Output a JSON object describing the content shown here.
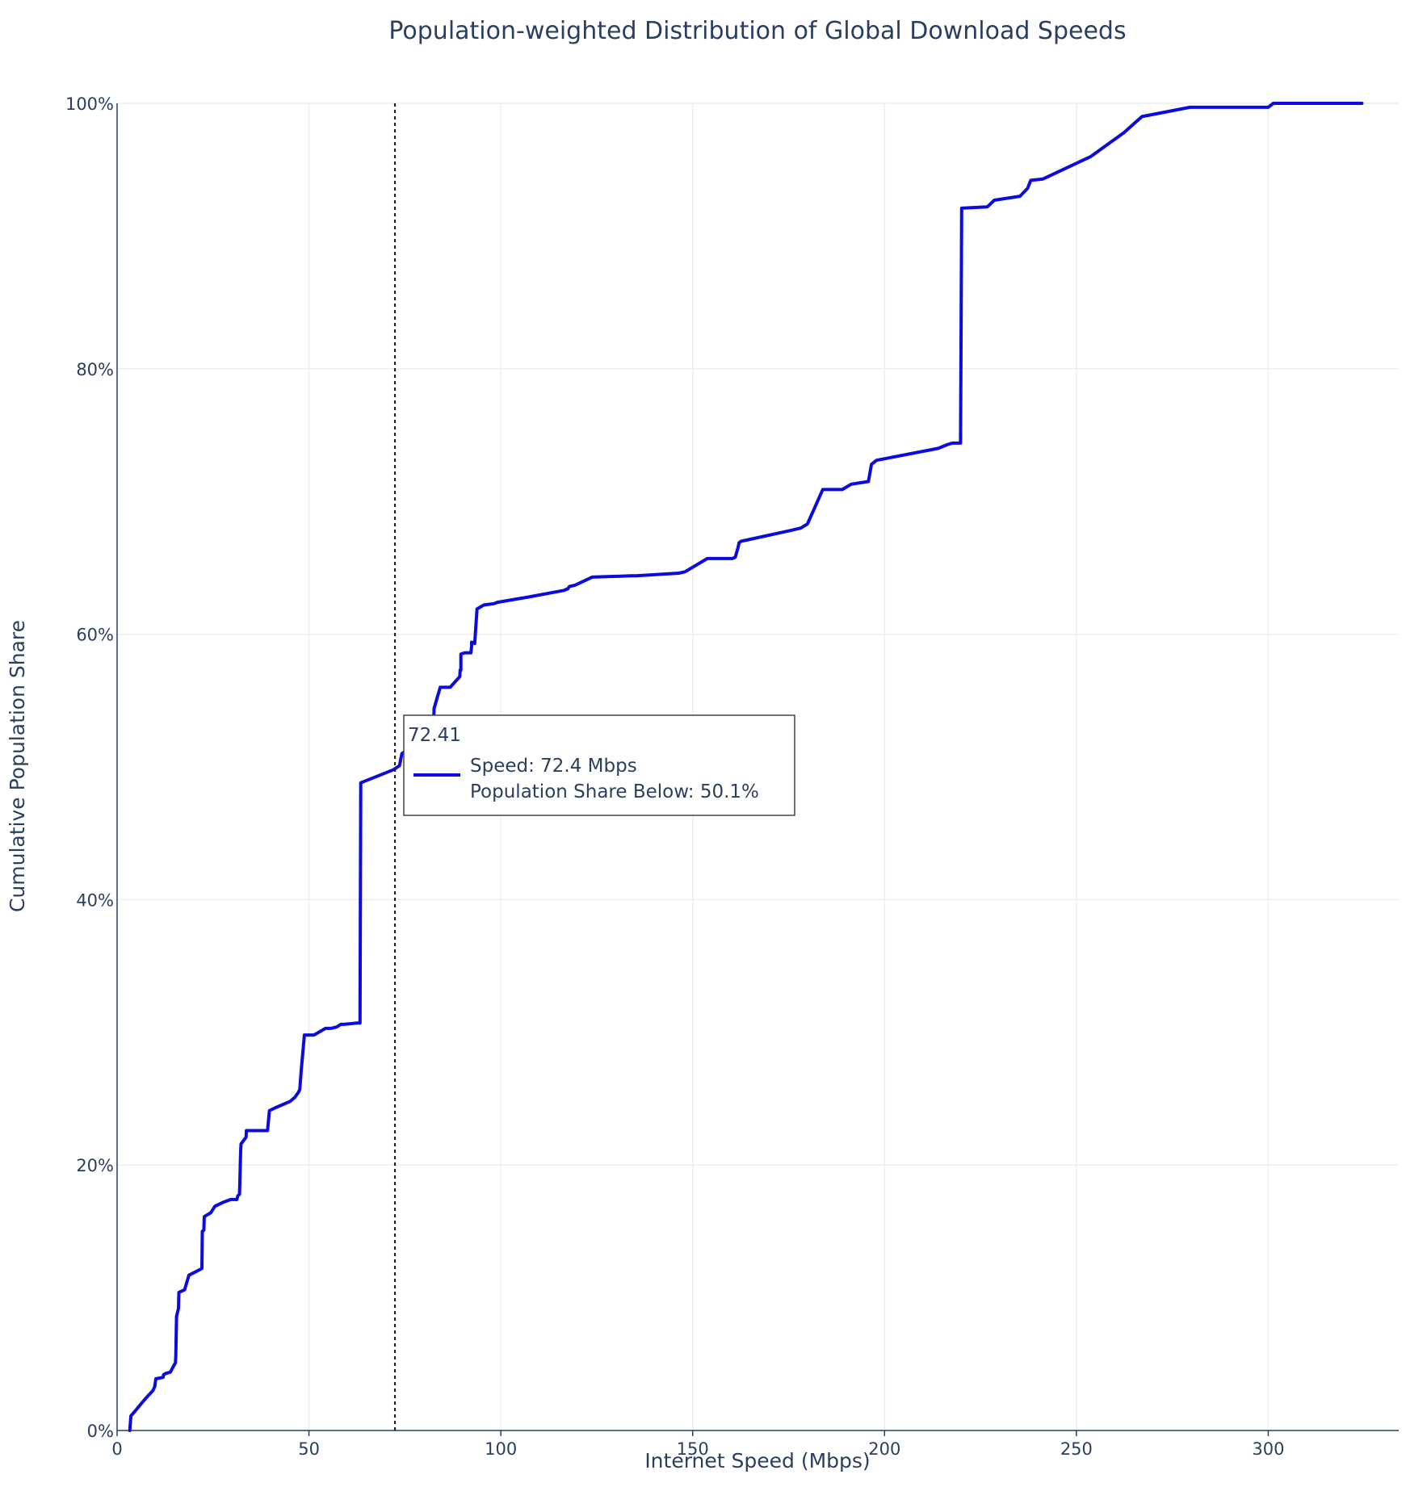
{
  "chart_data": {
    "type": "line",
    "title": "Population-weighted Distribution of Global Download Speeds",
    "xlabel": "Internet Speed (Mbps)",
    "ylabel": "Cumulative Population Share",
    "xlim": [
      0,
      334
    ],
    "ylim": [
      0,
      100
    ],
    "x_ticks": [
      0,
      50,
      100,
      150,
      200,
      250,
      300
    ],
    "y_ticks": [
      0,
      20,
      40,
      60,
      80,
      100
    ],
    "y_tick_suffix": "%",
    "grid": true,
    "line_color": "#0b0be0",
    "series": [
      {
        "x": [
          3.3,
          3.6,
          4.5,
          6.5,
          8.0,
          9.3,
          9.8,
          10.1,
          12.0,
          12.1,
          12.7,
          13.9,
          14.6,
          15.2,
          15.3,
          15.5,
          16.0,
          16.1,
          17.6,
          18.7,
          22.1,
          22.2,
          22.6,
          22.7,
          23.2,
          24.4,
          25.5,
          27.7,
          29.6,
          30.3,
          31.2,
          31.5,
          31.9,
          32.2,
          32.3,
          33.6,
          33.7,
          38.0,
          39.2,
          39.7,
          41.1,
          45.1,
          46.3,
          47.3,
          47.6,
          48.0,
          48.8,
          51.3,
          53.1,
          54.3,
          55.7,
          57.2,
          58.3,
          59.1,
          62.6,
          63.3,
          63.5,
          72.1,
          73.6,
          74.2,
          74.7,
          75.1,
          76.9,
          77.3,
          79.8,
          80.5,
          81.1,
          81.8,
          82.5,
          82.6,
          83.6,
          83.9,
          84.2,
          86.8,
          89.3,
          89.4,
          89.6,
          89.6,
          90.6,
          92.2,
          92.4,
          92.4,
          93.2,
          93.8,
          95.6,
          98.2,
          99.1,
          107.1,
          116.5,
          117.2,
          117.4,
          117.9,
          119.4,
          123.8,
          133.9,
          134.1,
          135.3,
          146.4,
          148.0,
          153.8,
          159.1,
          160.3,
          161.1,
          161.6,
          161.8,
          162.1,
          162.6,
          175.2,
          178.2,
          179.9,
          183.9,
          189.0,
          191.3,
          195.7,
          195.8,
          196.6,
          197.9,
          214.0,
          216.5,
          217.7,
          219.1,
          219.8,
          220.1,
          226.8,
          228.6,
          235.3,
          237.3,
          238.1,
          241.3,
          253.8,
          262.4,
          267.1,
          279.6,
          300.0,
          301.3,
          324.4
        ],
        "y": [
          0.0,
          1.1,
          1.4,
          2.1,
          2.6,
          3.0,
          3.3,
          3.9,
          4.0,
          4.2,
          4.3,
          4.4,
          4.8,
          5.1,
          5.6,
          8.6,
          9.2,
          10.4,
          10.6,
          11.7,
          12.2,
          15.0,
          15.1,
          16.1,
          16.2,
          16.4,
          16.9,
          17.2,
          17.4,
          17.4,
          17.4,
          17.7,
          17.8,
          21.1,
          21.6,
          22.1,
          22.6,
          22.6,
          22.6,
          24.1,
          24.3,
          24.8,
          25.1,
          25.5,
          25.7,
          27.2,
          29.8,
          29.8,
          30.1,
          30.3,
          30.3,
          30.4,
          30.6,
          30.6,
          30.7,
          30.7,
          48.8,
          49.8,
          50.1,
          51.0,
          51.1,
          51.2,
          51.2,
          51.3,
          51.7,
          52.5,
          52.7,
          53.2,
          53.4,
          54.4,
          55.4,
          55.7,
          56.0,
          56.0,
          56.8,
          57.3,
          57.3,
          58.5,
          58.6,
          58.6,
          59.1,
          59.4,
          59.3,
          61.9,
          62.2,
          62.3,
          62.4,
          62.8,
          63.3,
          63.4,
          63.4,
          63.6,
          63.7,
          64.3,
          64.4,
          64.4,
          64.4,
          64.6,
          64.7,
          65.7,
          65.7,
          65.7,
          65.8,
          66.3,
          66.5,
          66.9,
          67.0,
          67.8,
          68.0,
          68.3,
          70.9,
          70.9,
          71.3,
          71.5,
          71.5,
          72.8,
          73.1,
          74.0,
          74.3,
          74.4,
          74.4,
          74.4,
          92.1,
          92.2,
          92.7,
          93.0,
          93.6,
          94.2,
          94.3,
          96.0,
          97.8,
          99.0,
          99.7,
          99.7,
          100.0,
          100.0
        ]
      }
    ],
    "reference_line": {
      "x": 72.41,
      "style": "dotted"
    },
    "hover": {
      "header": "72.41",
      "line1": "Speed: 72.4 Mbps",
      "line2": "Population Share Below: 50.1%"
    }
  }
}
